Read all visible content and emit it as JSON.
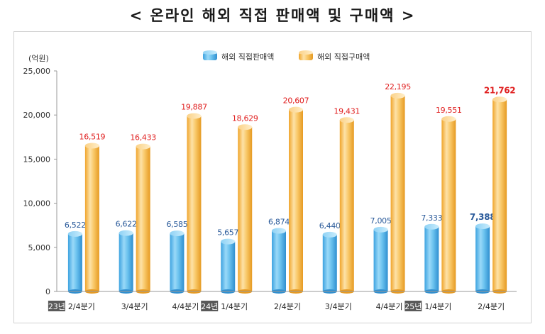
{
  "title": "< 온라인 해외 직접 판매액 및 구매액 >",
  "chart_data": {
    "type": "bar",
    "unit_label": "(억원)",
    "ylim": [
      0,
      25000
    ],
    "yticks": [
      "0",
      "5,000",
      "10,000",
      "15,000",
      "20,000",
      "25,000"
    ],
    "ytick_values": [
      0,
      5000,
      10000,
      15000,
      20000,
      25000
    ],
    "grid": false,
    "legend_position": "top",
    "categories": [
      {
        "year": "23년",
        "label": "2/4분기"
      },
      {
        "year": "",
        "label": "3/4분기"
      },
      {
        "year": "",
        "label": "4/4분기"
      },
      {
        "year": "24년",
        "label": "1/4분기"
      },
      {
        "year": "",
        "label": "2/4분기"
      },
      {
        "year": "",
        "label": "3/4분기"
      },
      {
        "year": "",
        "label": "4/4분기"
      },
      {
        "year": "25년",
        "label": "1/4분기"
      },
      {
        "year": "",
        "label": "2/4분기"
      }
    ],
    "series": [
      {
        "name": "해외 직접판매액",
        "values": [
          6522,
          6622,
          6585,
          5657,
          6874,
          6440,
          7005,
          7333,
          7388
        ],
        "labels": [
          "6,522",
          "6,622",
          "6,585",
          "5,657",
          "6,874",
          "6,440",
          "7,005",
          "7,333",
          "7,388"
        ],
        "color": "#5bb8ea",
        "label_color": "#2a5a9a"
      },
      {
        "name": "해외 직접구매액",
        "values": [
          16519,
          16433,
          19887,
          18629,
          20607,
          19431,
          22195,
          19551,
          21762
        ],
        "labels": [
          "16,519",
          "16,433",
          "19,887",
          "18,629",
          "20,607",
          "19,431",
          "22,195",
          "19,551",
          "21,762"
        ],
        "color": "#f5b94a",
        "label_color": "#e02020"
      }
    ]
  }
}
